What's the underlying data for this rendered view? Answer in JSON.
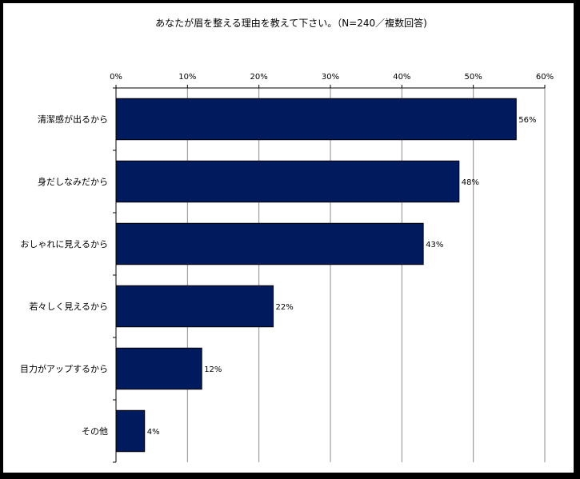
{
  "chart_data": {
    "type": "bar",
    "orientation": "horizontal",
    "title": "あなたが眉を整える理由を教えて下さい。（N=240／複数回答)",
    "categories": [
      "清潔感が出るから",
      "身だしなみだから",
      "おしゃれに見えるから",
      "若々しく見えるから",
      "目力がアップするから",
      "その他"
    ],
    "values": [
      56,
      48,
      43,
      22,
      12,
      4
    ],
    "value_labels": [
      "56%",
      "48%",
      "43%",
      "22%",
      "12%",
      "4%"
    ],
    "x_ticks": [
      "0%",
      "10%",
      "20%",
      "30%",
      "40%",
      "50%",
      "60%"
    ],
    "xlim": [
      0,
      60
    ],
    "grid": true,
    "legend": "none",
    "bar_color": "#001a5e"
  }
}
